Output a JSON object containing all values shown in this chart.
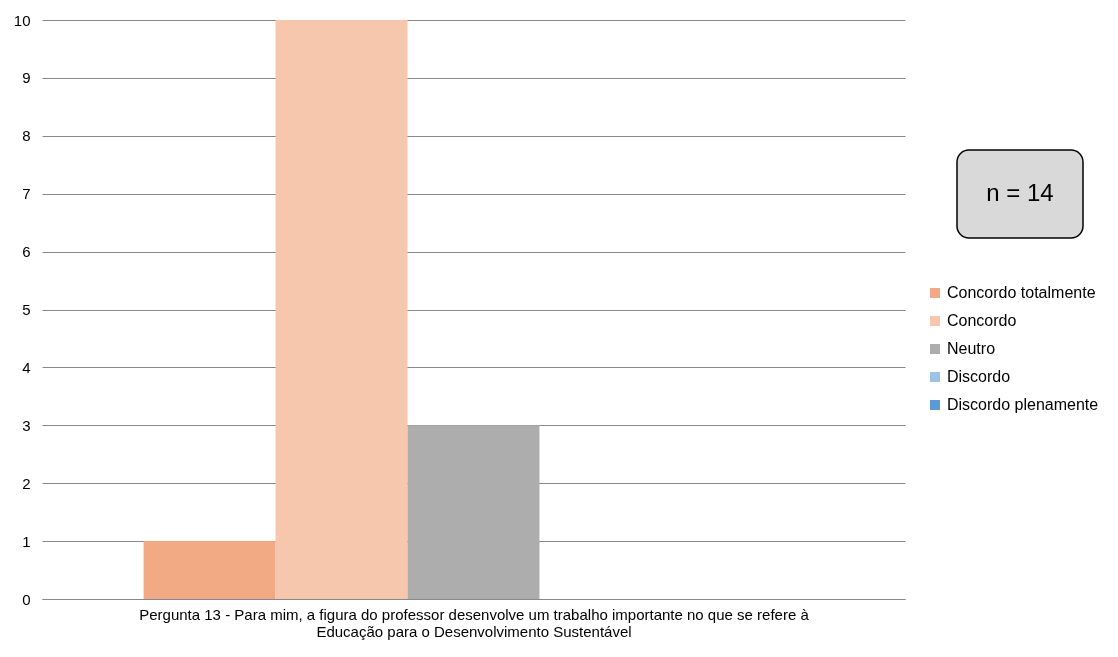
{
  "chart_data": {
    "type": "bar",
    "categories": [
      null
    ],
    "series": [
      {
        "name": "Concordo totalmente",
        "color": "#f2aa84",
        "values": [
          1
        ]
      },
      {
        "name": "Concordo",
        "color": "#f6c7ac",
        "values": [
          10
        ]
      },
      {
        "name": "Neutro",
        "color": "#adadad",
        "values": [
          3
        ]
      },
      {
        "name": "Discordo",
        "color": "#9dc3e6",
        "values": [
          0
        ]
      },
      {
        "name": "Discordo plenamente",
        "color": "#5b9bd5",
        "values": [
          0
        ]
      }
    ],
    "xlabel": "Pergunta 13 - Para mim, a figura do professor desenvolve um trabalho importante no que se refere à Educação para o Desenvolvimento Sustentável",
    "annotations": [
      "n = 14"
    ],
    "ylim": [
      0,
      10
    ],
    "yticks": [
      0,
      1,
      2,
      3,
      4,
      5,
      6,
      7,
      8,
      9,
      10
    ],
    "grid": "y",
    "legend": "right"
  }
}
